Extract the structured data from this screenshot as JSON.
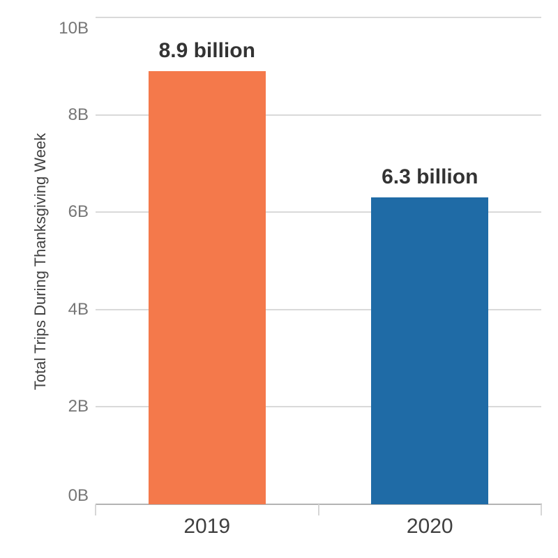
{
  "chart_data": {
    "type": "bar",
    "categories": [
      "2019",
      "2020"
    ],
    "values": [
      8.9,
      6.3
    ],
    "value_labels": [
      "8.9 billion",
      "6.3 billion"
    ],
    "bar_colors": [
      "#F4794B",
      "#1F6BA6"
    ],
    "title": "",
    "xlabel": "",
    "ylabel": "Total Trips During Thanksgiving Week",
    "ylim": [
      0,
      10
    ],
    "y_ticks": [
      {
        "value": 0,
        "label": "0B"
      },
      {
        "value": 2,
        "label": "2B"
      },
      {
        "value": 4,
        "label": "4B"
      },
      {
        "value": 6,
        "label": "6B"
      },
      {
        "value": 8,
        "label": "8B"
      },
      {
        "value": 10,
        "label": "10B"
      }
    ],
    "grid": "horizontal",
    "legend": "none"
  },
  "colors": {
    "background": "#FFFFFF",
    "gridline": "#D9D9D9",
    "axis_line": "#B3B3B3",
    "tick_stub": "#D6D6D6",
    "tick_label": "#767676",
    "category_label": "#3F3F3F",
    "data_label": "#333333",
    "axis_title": "#414141",
    "bar_2019": "#F4794B",
    "bar_2020": "#1F6BA6"
  }
}
